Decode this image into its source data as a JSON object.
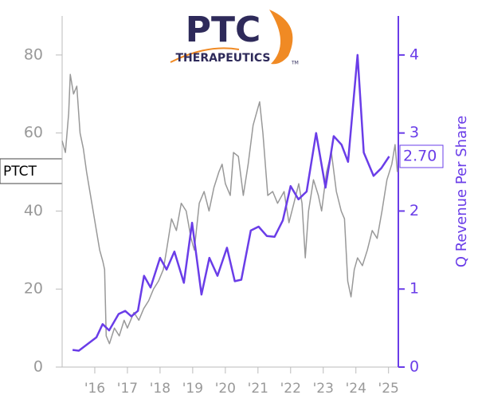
{
  "chart_data": {
    "type": "line",
    "logo": {
      "name": "PTC",
      "sub": "THERAPEUTICS",
      "mark": "TM"
    },
    "xlim": [
      2015.0,
      2025.3
    ],
    "xticks": [
      {
        "value": 2016,
        "label": "'16"
      },
      {
        "value": 2017,
        "label": "'17"
      },
      {
        "value": 2018,
        "label": "'18"
      },
      {
        "value": 2019,
        "label": "'19"
      },
      {
        "value": 2020,
        "label": "'20"
      },
      {
        "value": 2021,
        "label": "'21"
      },
      {
        "value": 2022,
        "label": "'22"
      },
      {
        "value": 2023,
        "label": "'23"
      },
      {
        "value": 2024,
        "label": "'24"
      },
      {
        "value": 2025,
        "label": "'25"
      }
    ],
    "ylim": [
      0,
      90
    ],
    "yticks": [
      0,
      20,
      40,
      60,
      80
    ],
    "y2lim": [
      0,
      4.5
    ],
    "y2ticks": [
      0,
      1,
      2,
      3,
      4
    ],
    "last_value_label": "2.70",
    "series": [
      {
        "name": "PTCT",
        "color": "#999999",
        "axis": "y",
        "x": [
          2015.0,
          2015.1,
          2015.2,
          2015.25,
          2015.35,
          2015.45,
          2015.55,
          2015.65,
          2015.75,
          2015.85,
          2015.95,
          2016.05,
          2016.15,
          2016.25,
          2016.3,
          2016.35,
          2016.45,
          2016.6,
          2016.75,
          2016.9,
          2017.0,
          2017.1,
          2017.2,
          2017.35,
          2017.5,
          2017.65,
          2017.8,
          2017.95,
          2018.1,
          2018.2,
          2018.35,
          2018.5,
          2018.65,
          2018.8,
          2018.95,
          2019.05,
          2019.2,
          2019.35,
          2019.5,
          2019.65,
          2019.8,
          2019.9,
          2020.0,
          2020.15,
          2020.25,
          2020.4,
          2020.55,
          2020.7,
          2020.85,
          2020.95,
          2021.05,
          2021.15,
          2021.3,
          2021.45,
          2021.6,
          2021.8,
          2021.95,
          2022.1,
          2022.25,
          2022.35,
          2022.45,
          2022.55,
          2022.7,
          2022.85,
          2022.95,
          2023.1,
          2023.25,
          2023.4,
          2023.55,
          2023.65,
          2023.75,
          2023.85,
          2023.95,
          2024.05,
          2024.2,
          2024.35,
          2024.5,
          2024.65,
          2024.8,
          2024.95,
          2025.1,
          2025.2,
          2025.27
        ],
        "values": [
          58,
          55,
          65,
          75,
          70,
          72,
          60,
          56,
          50,
          45,
          40,
          35,
          30,
          27,
          25,
          8,
          6,
          10,
          8,
          12,
          10,
          12,
          14,
          12,
          15,
          17,
          20,
          22,
          25,
          30,
          38,
          35,
          42,
          40,
          33,
          30,
          42,
          45,
          40,
          46,
          50,
          52,
          47,
          44,
          55,
          54,
          44,
          52,
          62,
          65,
          68,
          60,
          44,
          45,
          42,
          45,
          37,
          42,
          47,
          42,
          28,
          40,
          48,
          44,
          40,
          50,
          55,
          45,
          40,
          38,
          22,
          18,
          25,
          28,
          26,
          30,
          35,
          33,
          40,
          48,
          52,
          57,
          50
        ]
      },
      {
        "name": "Q Revenue Per Share",
        "color": "#6a3de8",
        "axis": "y2",
        "x": [
          2015.32,
          2015.51,
          2016.05,
          2016.24,
          2016.44,
          2016.73,
          2016.93,
          2017.12,
          2017.32,
          2017.51,
          2017.71,
          2018.0,
          2018.2,
          2018.44,
          2018.73,
          2018.98,
          2019.27,
          2019.51,
          2019.76,
          2020.05,
          2020.29,
          2020.49,
          2020.78,
          2021.02,
          2021.27,
          2021.51,
          2021.76,
          2022.0,
          2022.24,
          2022.49,
          2022.78,
          2023.07,
          2023.32,
          2023.56,
          2023.76,
          2024.05,
          2024.24,
          2024.54,
          2024.78,
          2025.02
        ],
        "values": [
          0.22,
          0.21,
          0.38,
          0.55,
          0.47,
          0.68,
          0.72,
          0.65,
          0.72,
          1.17,
          1.02,
          1.4,
          1.25,
          1.48,
          1.08,
          1.85,
          0.93,
          1.4,
          1.17,
          1.53,
          1.1,
          1.12,
          1.75,
          1.8,
          1.68,
          1.67,
          1.88,
          2.32,
          2.15,
          2.25,
          3.0,
          2.3,
          2.96,
          2.85,
          2.63,
          4.0,
          2.75,
          2.45,
          2.55,
          2.7
        ]
      }
    ]
  }
}
